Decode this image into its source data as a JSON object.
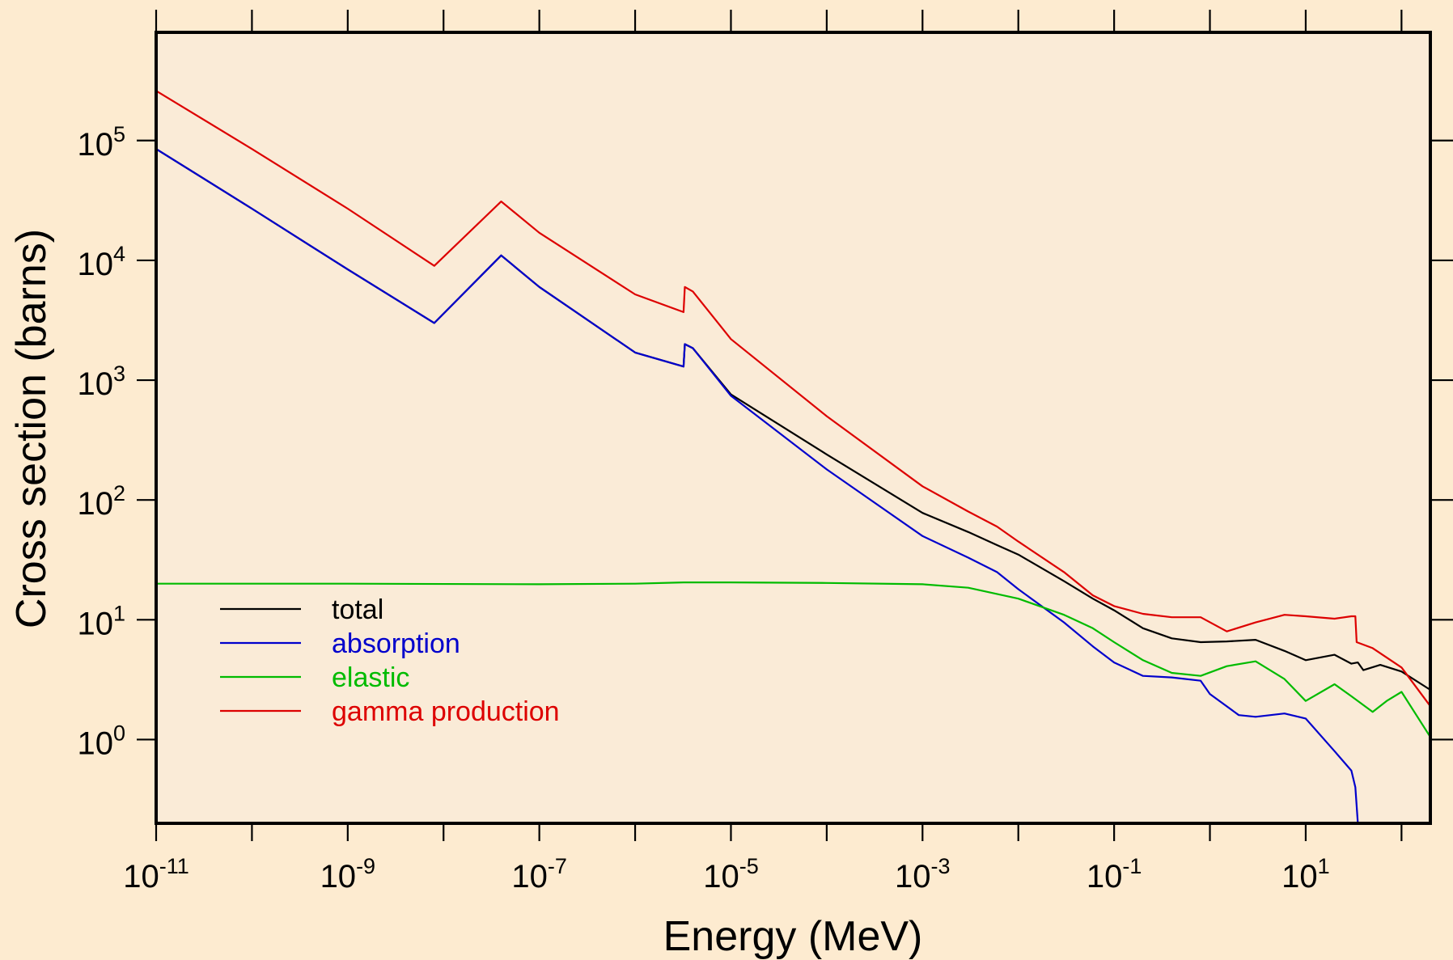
{
  "chart_data": {
    "type": "line",
    "title": "",
    "xlabel": "Energy (MeV)",
    "ylabel": "Cross section (barns)",
    "xscale": "log",
    "yscale": "log",
    "xlim": [
      1e-11,
      200
    ],
    "ylim": [
      0.2,
      800000
    ],
    "x_ticks": [
      {
        "value": 1e-11,
        "base": "10",
        "exp": "-11"
      },
      {
        "value": 1e-09,
        "base": "10",
        "exp": "-9"
      },
      {
        "value": 1e-07,
        "base": "10",
        "exp": "-7"
      },
      {
        "value": 1e-05,
        "base": "10",
        "exp": "-5"
      },
      {
        "value": 0.001,
        "base": "10",
        "exp": "-3"
      },
      {
        "value": 0.1,
        "base": "10",
        "exp": "-1"
      },
      {
        "value": 10,
        "base": "10",
        "exp": "1"
      }
    ],
    "y_ticks": [
      {
        "value": 1,
        "base": "10",
        "exp": "0"
      },
      {
        "value": 10,
        "base": "10",
        "exp": "1"
      },
      {
        "value": 100,
        "base": "10",
        "exp": "2"
      },
      {
        "value": 1000,
        "base": "10",
        "exp": "3"
      },
      {
        "value": 10000,
        "base": "10",
        "exp": "4"
      },
      {
        "value": 100000,
        "base": "10",
        "exp": "5"
      }
    ],
    "grid": false,
    "legend_position": "lower-left",
    "series": [
      {
        "name": "total",
        "color": "#000000",
        "x": [
          1e-11,
          1e-10,
          1e-09,
          8e-09,
          4e-08,
          1e-07,
          1e-06,
          3.2e-06,
          3.3e-06,
          4e-06,
          1e-05,
          0.0001,
          0.001,
          0.003,
          0.006,
          0.01,
          0.03,
          0.06,
          0.1,
          0.2,
          0.4,
          0.8,
          1.5,
          3,
          6,
          10,
          20,
          30,
          35,
          40,
          60,
          100,
          200
        ],
        "y": [
          85000,
          27000,
          8400,
          3000,
          11000,
          6000,
          1700,
          1300,
          2000,
          1850,
          760,
          240,
          78,
          54,
          42,
          35,
          21,
          15,
          12,
          8.5,
          7,
          6.5,
          6.6,
          6.8,
          5.5,
          4.6,
          5.1,
          4.3,
          4.4,
          3.8,
          4.2,
          3.7,
          2.6
        ]
      },
      {
        "name": "absorption",
        "color": "#0000CC",
        "x": [
          1e-11,
          1e-10,
          1e-09,
          8e-09,
          4e-08,
          1e-07,
          1e-06,
          3.2e-06,
          3.3e-06,
          4e-06,
          1e-05,
          0.0001,
          0.001,
          0.003,
          0.006,
          0.01,
          0.03,
          0.06,
          0.1,
          0.2,
          0.4,
          0.8,
          1,
          2,
          3,
          6,
          10,
          20,
          30,
          33,
          35,
          36,
          200
        ],
        "y": [
          85000,
          27000,
          8400,
          3000,
          11000,
          6000,
          1700,
          1300,
          2000,
          1850,
          740,
          180,
          50,
          33,
          25,
          18,
          9.5,
          6,
          4.4,
          3.4,
          3.3,
          3.1,
          2.4,
          1.6,
          1.55,
          1.65,
          1.5,
          0.8,
          0.55,
          0.4,
          0.2,
          0.2,
          0.2
        ]
      },
      {
        "name": "elastic",
        "color": "#00BB00",
        "x": [
          1e-11,
          1e-09,
          1e-07,
          1e-06,
          3.2e-06,
          1e-05,
          0.0001,
          0.001,
          0.003,
          0.01,
          0.03,
          0.06,
          0.1,
          0.2,
          0.4,
          0.8,
          1.5,
          3,
          6,
          10,
          20,
          30,
          50,
          70,
          100,
          200
        ],
        "y": [
          20,
          20,
          19.8,
          20,
          20.5,
          20.5,
          20.3,
          19.8,
          18.5,
          15,
          11,
          8.5,
          6.5,
          4.6,
          3.6,
          3.4,
          4.1,
          4.5,
          3.2,
          2.1,
          2.9,
          2.3,
          1.7,
          2.1,
          2.5,
          1.05
        ]
      },
      {
        "name": "gamma production",
        "color": "#DD0000",
        "x": [
          1e-11,
          1e-10,
          1e-09,
          8e-09,
          4e-08,
          1e-07,
          1e-06,
          3.2e-06,
          3.3e-06,
          4e-06,
          1e-05,
          0.0001,
          0.001,
          0.003,
          0.006,
          0.01,
          0.03,
          0.06,
          0.1,
          0.2,
          0.4,
          0.8,
          1.5,
          3,
          6,
          10,
          20,
          30,
          33,
          34,
          50,
          100,
          200
        ],
        "y": [
          260000,
          85000,
          27000,
          9000,
          31000,
          17000,
          5200,
          3700,
          6000,
          5500,
          2200,
          500,
          130,
          80,
          60,
          45,
          25,
          16,
          13,
          11.2,
          10.5,
          10.5,
          8,
          9.5,
          11,
          10.7,
          10.2,
          10.7,
          10.7,
          6.5,
          5.8,
          4,
          1.9
        ]
      }
    ]
  }
}
